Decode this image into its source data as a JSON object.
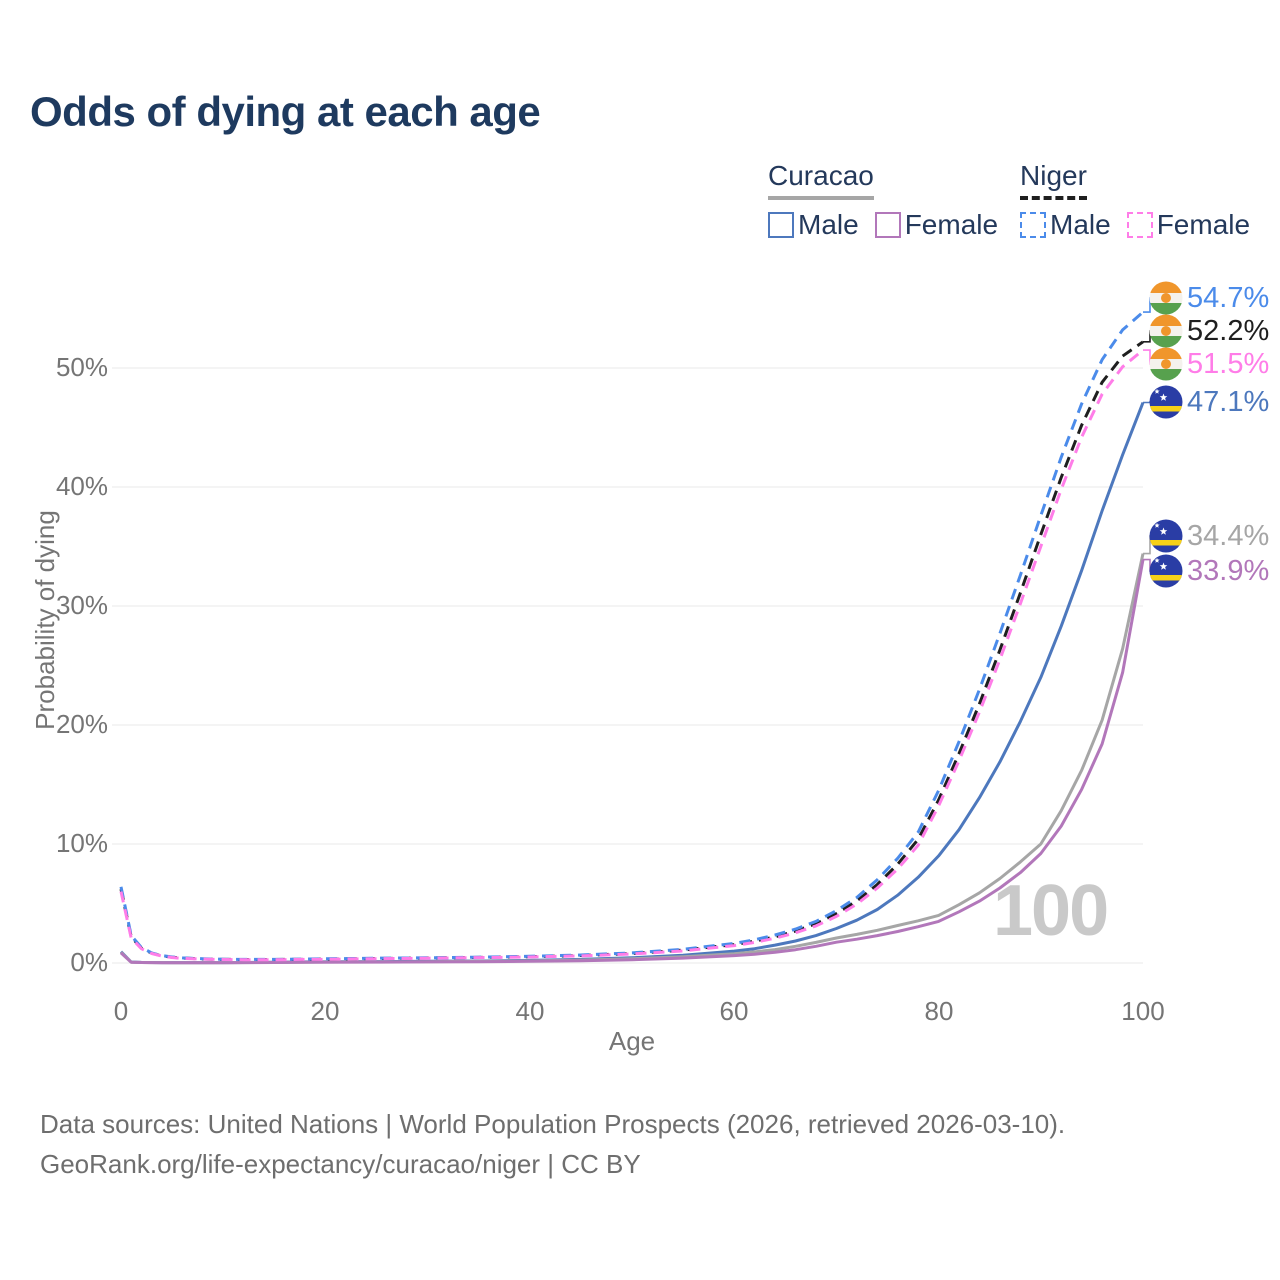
{
  "title": "Odds of dying at each age",
  "legend": {
    "curacao": {
      "title": "Curacao",
      "male": "Male",
      "female": "Female"
    },
    "niger": {
      "title": "Niger",
      "male": "Male",
      "female": "Female"
    }
  },
  "chart_data": {
    "type": "line",
    "title": "Odds of dying at each age",
    "xlabel": "Age",
    "ylabel": "Probability of dying",
    "x_tick_labels": [
      "0",
      "20",
      "40",
      "60",
      "80",
      "100"
    ],
    "y_tick_labels": [
      "0%",
      "10%",
      "20%",
      "30%",
      "40%",
      "50%"
    ],
    "y_grid_percent": [
      0,
      10,
      20,
      30,
      40,
      50
    ],
    "xlim": [
      0,
      100
    ],
    "ylim_percent": [
      0,
      56
    ],
    "grid": "horizontal",
    "legend_position": "top-right",
    "watermark": "100",
    "x": [
      0,
      1,
      2,
      3,
      4,
      5,
      6,
      8,
      10,
      12,
      15,
      18,
      20,
      25,
      30,
      35,
      40,
      45,
      50,
      55,
      60,
      62,
      64,
      66,
      68,
      70,
      72,
      74,
      76,
      78,
      80,
      82,
      84,
      86,
      88,
      90,
      92,
      94,
      96,
      98,
      100
    ],
    "series": [
      {
        "name": "Niger Male",
        "country": "Niger",
        "sex": "Male",
        "line": "dashed",
        "color": "#4b8bea",
        "flag": "niger-flag",
        "end_label": "54.7%",
        "values": [
          6.4,
          2.3,
          1.3,
          0.85,
          0.62,
          0.5,
          0.43,
          0.35,
          0.31,
          0.3,
          0.3,
          0.33,
          0.35,
          0.4,
          0.44,
          0.49,
          0.56,
          0.67,
          0.85,
          1.15,
          1.65,
          1.95,
          2.35,
          2.85,
          3.5,
          4.4,
          5.5,
          7.0,
          8.8,
          11.0,
          14.5,
          18.6,
          23.0,
          27.7,
          32.6,
          37.6,
          42.5,
          47.0,
          50.7,
          53.2,
          54.7
        ]
      },
      {
        "name": "Niger Both sexes",
        "country": "Niger",
        "sex": "Both",
        "line": "dashed",
        "color": "#1f1f1f",
        "flag": "niger-flag",
        "end_label": "52.2%",
        "values": [
          6.2,
          2.2,
          1.25,
          0.82,
          0.6,
          0.48,
          0.41,
          0.34,
          0.3,
          0.29,
          0.29,
          0.31,
          0.33,
          0.38,
          0.42,
          0.47,
          0.53,
          0.63,
          0.8,
          1.08,
          1.55,
          1.83,
          2.2,
          2.68,
          3.3,
          4.15,
          5.2,
          6.6,
          8.3,
          10.4,
          13.7,
          17.6,
          21.8,
          26.3,
          31.1,
          36.0,
          40.8,
          45.2,
          48.8,
          51.0,
          52.2
        ]
      },
      {
        "name": "Niger Female",
        "country": "Niger",
        "sex": "Female",
        "line": "dashed",
        "color": "#ff7de8",
        "flag": "niger-flag",
        "end_label": "51.5%",
        "values": [
          6.0,
          2.1,
          1.2,
          0.8,
          0.58,
          0.46,
          0.39,
          0.33,
          0.29,
          0.28,
          0.28,
          0.3,
          0.31,
          0.36,
          0.4,
          0.45,
          0.5,
          0.6,
          0.76,
          1.02,
          1.46,
          1.73,
          2.08,
          2.54,
          3.12,
          3.92,
          4.95,
          6.3,
          7.9,
          9.9,
          13.2,
          17.0,
          21.1,
          25.5,
          30.2,
          35.0,
          39.8,
          44.2,
          47.8,
          50.1,
          51.5
        ]
      },
      {
        "name": "Curacao Male",
        "country": "Curacao",
        "sex": "Male",
        "line": "solid",
        "color": "#4d78bd",
        "flag": "curacao-flag",
        "end_label": "47.1%",
        "values": [
          0.95,
          0.08,
          0.05,
          0.04,
          0.035,
          0.03,
          0.03,
          0.03,
          0.035,
          0.04,
          0.06,
          0.09,
          0.1,
          0.12,
          0.14,
          0.17,
          0.22,
          0.3,
          0.44,
          0.65,
          1.0,
          1.2,
          1.5,
          1.85,
          2.3,
          2.9,
          3.6,
          4.5,
          5.7,
          7.2,
          9.0,
          11.2,
          13.9,
          16.9,
          20.3,
          24.0,
          28.3,
          33.0,
          38.0,
          42.7,
          47.1
        ]
      },
      {
        "name": "Curacao Both sexes",
        "country": "Curacao",
        "sex": "Both",
        "line": "solid",
        "color": "#a6a6a6",
        "flag": "curacao-flag",
        "end_label": "34.4%",
        "values": [
          0.9,
          0.07,
          0.045,
          0.035,
          0.03,
          0.028,
          0.027,
          0.027,
          0.03,
          0.035,
          0.05,
          0.07,
          0.08,
          0.095,
          0.11,
          0.14,
          0.18,
          0.24,
          0.35,
          0.52,
          0.78,
          0.93,
          1.13,
          1.4,
          1.73,
          2.1,
          2.4,
          2.75,
          3.15,
          3.55,
          4.0,
          4.9,
          5.9,
          7.1,
          8.5,
          10.0,
          12.8,
          16.2,
          20.4,
          26.4,
          34.4
        ]
      },
      {
        "name": "Curacao Female",
        "country": "Curacao",
        "sex": "Female",
        "line": "solid",
        "color": "#b277ba",
        "flag": "curacao-flag",
        "end_label": "33.9%",
        "values": [
          0.85,
          0.06,
          0.04,
          0.03,
          0.027,
          0.025,
          0.024,
          0.024,
          0.027,
          0.03,
          0.04,
          0.055,
          0.06,
          0.075,
          0.09,
          0.11,
          0.14,
          0.19,
          0.28,
          0.41,
          0.62,
          0.74,
          0.9,
          1.12,
          1.4,
          1.75,
          2.0,
          2.3,
          2.65,
          3.05,
          3.5,
          4.3,
          5.2,
          6.3,
          7.6,
          9.2,
          11.5,
          14.6,
          18.4,
          24.4,
          33.9
        ]
      }
    ]
  },
  "footer": {
    "line1": "Data sources: United Nations | World Population Prospects (2026, retrieved 2026-03-10).",
    "line2": "GeoRank.org/life-expectancy/curacao/niger | CC BY"
  }
}
